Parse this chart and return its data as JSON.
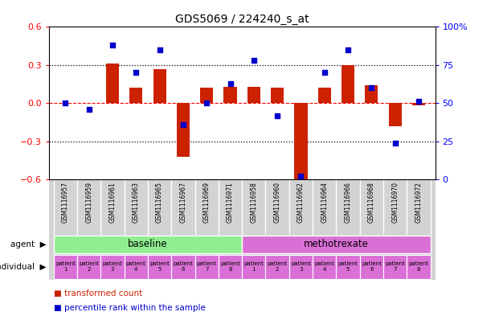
{
  "title": "GDS5069 / 224240_s_at",
  "samples": [
    "GSM1116957",
    "GSM1116959",
    "GSM1116961",
    "GSM1116963",
    "GSM1116965",
    "GSM1116967",
    "GSM1116969",
    "GSM1116971",
    "GSM1116958",
    "GSM1116960",
    "GSM1116962",
    "GSM1116964",
    "GSM1116966",
    "GSM1116968",
    "GSM1116970",
    "GSM1116972"
  ],
  "bar_values": [
    0.0,
    0.0,
    0.31,
    0.12,
    0.27,
    -0.42,
    0.12,
    0.13,
    0.13,
    0.12,
    -0.6,
    0.12,
    0.3,
    0.14,
    -0.18,
    -0.02
  ],
  "dot_values": [
    50,
    46,
    88,
    70,
    85,
    36,
    50,
    63,
    78,
    42,
    2,
    70,
    85,
    60,
    24,
    51
  ],
  "agent_groups": [
    {
      "label": "baseline",
      "start": 0,
      "end": 8,
      "color": "#90ee90"
    },
    {
      "label": "methotrexate",
      "start": 8,
      "end": 16,
      "color": "#da70d6"
    }
  ],
  "ind_colors": [
    "#da70d6",
    "#da70d6",
    "#da70d6",
    "#da70d6",
    "#da70d6",
    "#da70d6",
    "#da70d6",
    "#da70d6",
    "#da70d6",
    "#da70d6",
    "#da70d6",
    "#da70d6",
    "#da70d6",
    "#da70d6",
    "#da70d6",
    "#da70d6"
  ],
  "patient_labels": [
    "patient\n1",
    "patient\n2",
    "patient\n3",
    "patient\n4",
    "patient\n5",
    "patient\n6",
    "patient\n7",
    "patient\n8",
    "patient\n1",
    "patient\n2",
    "patient\n3",
    "patient\n4",
    "patient\n5",
    "patient\n6",
    "patient\n7",
    "patient\n8"
  ],
  "bar_color": "#cc2200",
  "dot_color": "#0000cc",
  "ylim": [
    -0.6,
    0.6
  ],
  "y2lim": [
    0,
    100
  ],
  "yticks": [
    -0.6,
    -0.3,
    0.0,
    0.3,
    0.6
  ],
  "y2ticks": [
    0,
    25,
    50,
    75,
    100
  ],
  "bg_label_area": "#d3d3d3",
  "legend": [
    {
      "label": "transformed count",
      "color": "#cc2200"
    },
    {
      "label": "percentile rank within the sample",
      "color": "#0000cc"
    }
  ]
}
